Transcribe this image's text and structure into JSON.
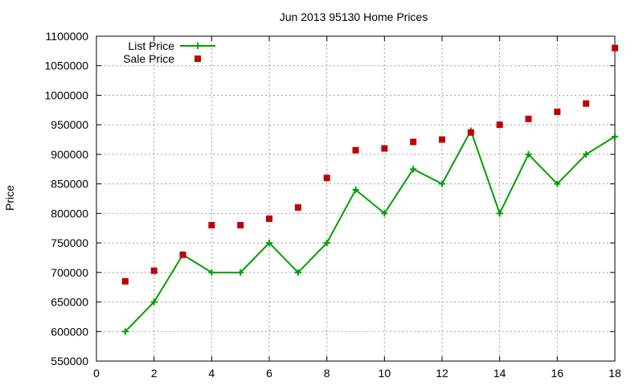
{
  "chart_data": {
    "type": "line",
    "title": "Jun 2013 95130 Home Prices",
    "xlabel": "",
    "ylabel": "Price",
    "xlim": [
      0,
      18
    ],
    "ylim": [
      550000,
      1100000
    ],
    "xticks": [
      0,
      2,
      4,
      6,
      8,
      10,
      12,
      14,
      16,
      18
    ],
    "yticks": [
      550000,
      600000,
      650000,
      700000,
      750000,
      800000,
      850000,
      900000,
      950000,
      1000000,
      1050000,
      1100000
    ],
    "grid": true,
    "legend_position": "top-left",
    "x": [
      1,
      2,
      3,
      4,
      5,
      6,
      7,
      8,
      9,
      10,
      11,
      12,
      13,
      14,
      15,
      16,
      17,
      18
    ],
    "series": [
      {
        "name": "List Price",
        "style": "linespoints",
        "marker": "plus",
        "color": "#00a000",
        "values": [
          600000,
          650000,
          730000,
          700000,
          700000,
          750000,
          700000,
          750000,
          840000,
          800000,
          875000,
          850000,
          940000,
          800000,
          900000,
          850000,
          900000,
          930000
        ]
      },
      {
        "name": "Sale Price",
        "style": "points",
        "marker": "square",
        "color": "#c00000",
        "values": [
          685000,
          703000,
          730000,
          780000,
          780000,
          791000,
          810000,
          860000,
          907000,
          910000,
          921000,
          925000,
          937000,
          950000,
          960000,
          972000,
          986000,
          1080000
        ]
      }
    ]
  }
}
